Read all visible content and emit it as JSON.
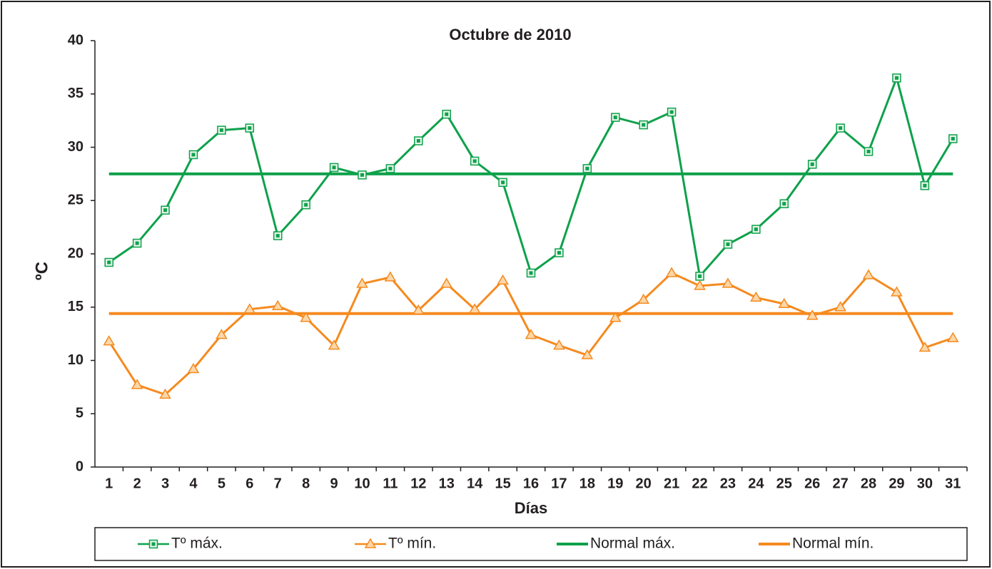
{
  "chart_data": {
    "type": "line",
    "title": "Octubre de 2010",
    "x_label": "Días",
    "y_label": "ºC",
    "categories": [
      "1",
      "2",
      "3",
      "4",
      "5",
      "6",
      "7",
      "8",
      "9",
      "10",
      "11",
      "12",
      "13",
      "14",
      "15",
      "16",
      "17",
      "18",
      "19",
      "20",
      "21",
      "22",
      "23",
      "24",
      "25",
      "26",
      "27",
      "28",
      "29",
      "30",
      "31"
    ],
    "ylim": [
      0,
      40
    ],
    "yticks": [
      0,
      5,
      10,
      15,
      20,
      25,
      30,
      35,
      40
    ],
    "grid": false,
    "legend": "bottom",
    "series": [
      {
        "name": "Tº máx.",
        "color": "#0ea14b",
        "marker": "square",
        "values": [
          19.2,
          21.0,
          24.1,
          29.3,
          31.6,
          31.8,
          21.7,
          24.6,
          28.1,
          27.4,
          28.0,
          30.6,
          33.1,
          28.7,
          26.7,
          18.2,
          20.1,
          28.0,
          32.8,
          32.1,
          33.3,
          17.9,
          20.9,
          22.3,
          24.7,
          28.4,
          31.8,
          29.6,
          36.5,
          26.4,
          30.8
        ]
      },
      {
        "name": "Tº mín.",
        "color": "#f58a1f",
        "marker": "triangle",
        "values": [
          11.8,
          7.7,
          6.8,
          9.2,
          12.4,
          14.8,
          15.1,
          14.0,
          11.4,
          17.2,
          17.8,
          14.7,
          17.2,
          14.8,
          17.5,
          12.4,
          11.4,
          10.5,
          14.0,
          15.7,
          18.2,
          17.0,
          17.2,
          15.9,
          15.3,
          14.2,
          15.0,
          18.0,
          16.4,
          11.2,
          12.1
        ]
      },
      {
        "name": "Normal máx.",
        "color": "#0ea14b",
        "marker": "none",
        "values": [
          27.5,
          27.5,
          27.5,
          27.5,
          27.5,
          27.5,
          27.5,
          27.5,
          27.5,
          27.5,
          27.5,
          27.5,
          27.5,
          27.5,
          27.5,
          27.5,
          27.5,
          27.5,
          27.5,
          27.5,
          27.5,
          27.5,
          27.5,
          27.5,
          27.5,
          27.5,
          27.5,
          27.5,
          27.5,
          27.5,
          27.5
        ]
      },
      {
        "name": "Normal mín.",
        "color": "#f58a1f",
        "marker": "none",
        "values": [
          14.4,
          14.4,
          14.4,
          14.4,
          14.4,
          14.4,
          14.4,
          14.4,
          14.4,
          14.4,
          14.4,
          14.4,
          14.4,
          14.4,
          14.4,
          14.4,
          14.4,
          14.4,
          14.4,
          14.4,
          14.4,
          14.4,
          14.4,
          14.4,
          14.4,
          14.4,
          14.4,
          14.4,
          14.4,
          14.4,
          14.4
        ]
      }
    ]
  }
}
